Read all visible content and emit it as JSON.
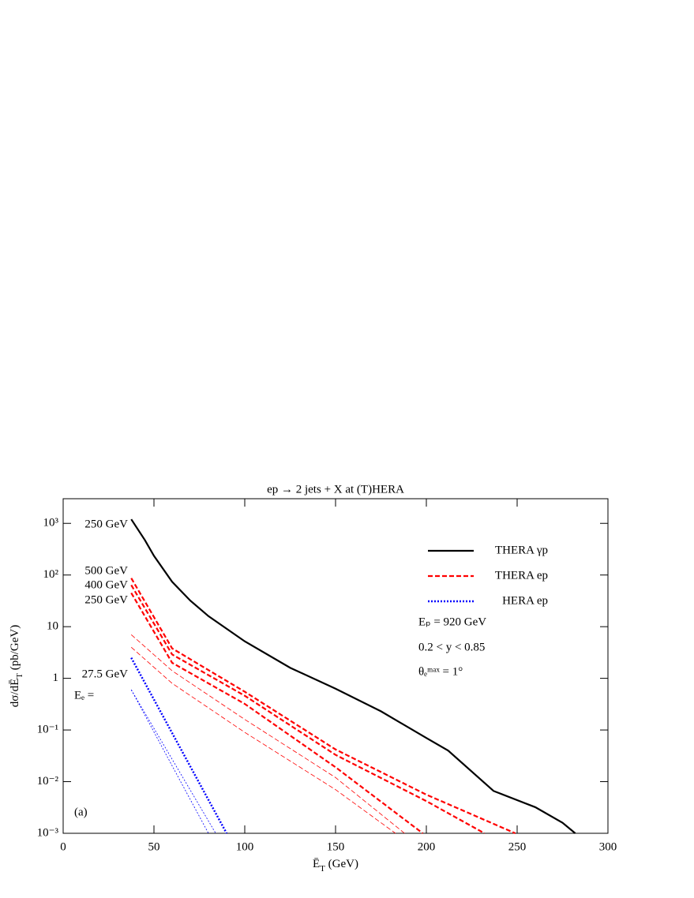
{
  "chart_data": {
    "type": "line",
    "title": "ep → 2 jets + X at (T)HERA",
    "xlabel": [
      "Ē",
      "T",
      " (GeV)"
    ],
    "ylabel": [
      "dσ/dĒ",
      "T",
      " (pb/GeV)"
    ],
    "xlim": [
      0,
      300
    ],
    "xticks": [
      0,
      50,
      100,
      150,
      200,
      250,
      300
    ],
    "ylim": [
      0.001,
      3000
    ],
    "log_y": true,
    "yticks": [
      {
        "value": 0.001,
        "label": "10⁻³"
      },
      {
        "value": 0.01,
        "label": "10⁻²"
      },
      {
        "value": 0.1,
        "label": "10⁻¹"
      },
      1,
      10,
      {
        "value": 100,
        "label": "10²"
      },
      {
        "value": 1000,
        "label": "10³"
      }
    ],
    "legend": "upper right",
    "series": [
      {
        "name": "THERA γp",
        "color": "#000000",
        "style": "solid",
        "width": 2.2,
        "x": [
          37.5,
          45,
          50,
          60,
          70,
          80,
          100,
          125,
          150,
          175,
          200,
          212,
          237,
          260,
          275,
          282
        ],
        "values": [
          1200,
          475,
          235,
          74,
          32,
          16,
          5.2,
          1.6,
          0.63,
          0.23,
          0.07,
          0.04,
          0.0066,
          0.0032,
          0.0016,
          0.001
        ]
      },
      {
        "name": "THERA ep",
        "color": "#ff0000",
        "style": "dashed",
        "width": 2.2,
        "x": [
          37.5,
          60,
          100,
          150,
          200,
          249
        ],
        "values": [
          87,
          3.8,
          0.55,
          0.042,
          0.0056,
          0.001
        ]
      },
      {
        "color": "#ff0000",
        "style": "dashed",
        "width": 2.2,
        "x": [
          37.5,
          60,
          100,
          150,
          200,
          232
        ],
        "values": [
          64,
          2.9,
          0.46,
          0.033,
          0.0042,
          0.001
        ]
      },
      {
        "color": "#ff0000",
        "style": "dashed",
        "width": 2.2,
        "x": [
          37.5,
          60,
          100,
          150,
          198
        ],
        "values": [
          45,
          2.0,
          0.32,
          0.019,
          0.001
        ]
      },
      {
        "color": "#ff0000",
        "style": "dashed",
        "width": 0.8,
        "x": [
          37.5,
          60,
          100,
          150,
          188
        ],
        "values": [
          7,
          1.4,
          0.16,
          0.012,
          0.001
        ]
      },
      {
        "color": "#ff0000",
        "style": "dashed",
        "width": 0.8,
        "x": [
          37.5,
          60,
          100,
          150,
          183
        ],
        "values": [
          4,
          0.8,
          0.09,
          0.007,
          0.001
        ]
      },
      {
        "name": "HERA ep",
        "color": "#0000ff",
        "style": "dotted",
        "width": 2.5,
        "x": [
          37.5,
          90
        ],
        "values": [
          2.5,
          0.001
        ]
      },
      {
        "color": "#0000ff",
        "style": "dotted",
        "width": 0.8,
        "x": [
          37.5,
          84
        ],
        "values": [
          0.6,
          0.001
        ]
      },
      {
        "color": "#0000ff",
        "style": "dotted",
        "width": 0.8,
        "x": [
          37.5,
          80
        ],
        "values": [
          0.6,
          0.001
        ]
      }
    ],
    "annotations": [
      "Eₚ = 920 GeV",
      "0.2 < y < 0.85",
      "θₑᵐᵃˣ = 1°",
      "(a)",
      "250 GeV",
      "500 GeV",
      "400 GeV",
      "250 GeV",
      "27.5 GeV",
      "Eₑ ="
    ]
  }
}
